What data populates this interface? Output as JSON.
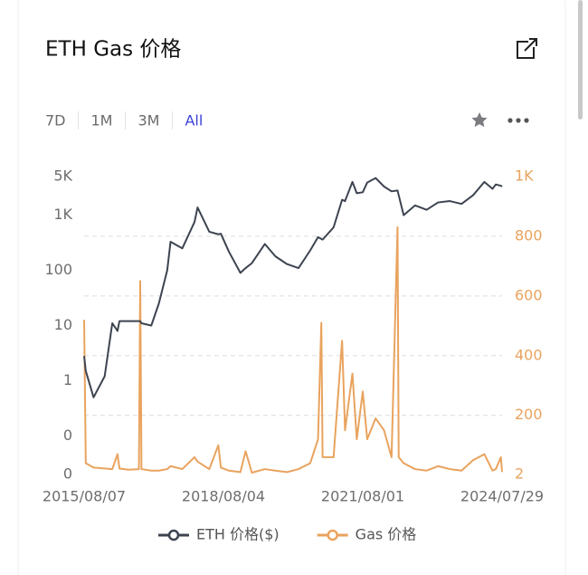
{
  "chart_data": {
    "type": "line",
    "title": "ETH Gas 价格",
    "tabs": [
      "7D",
      "1M",
      "3M",
      "All"
    ],
    "active_tab": "All",
    "log_scale": true,
    "grid": "y2",
    "x": [
      "2015/08/07",
      "2015/08/20",
      "2015/10/20",
      "2016/01/15",
      "2016/03/15",
      "2016/04/25",
      "2016/05/10",
      "2016/07/20",
      "2016/10/10",
      "2016/10/20",
      "2016/10/30",
      "2017/01/15",
      "2017/03/15",
      "2017/05/20",
      "2017/06/15",
      "2017/09/15",
      "2017/12/20",
      "2018/01/13",
      "2018/04/15",
      "2018/06/25",
      "2018/07/15",
      "2018/09/15",
      "2018/12/15",
      "2019/01/25",
      "2019/03/15",
      "2019/06/25",
      "2019/09/15",
      "2019/12/15",
      "2020/03/15",
      "2020/06/15",
      "2020/08/15",
      "2020/09/10",
      "2020/09/20",
      "2020/12/15",
      "2021/02/20",
      "2021/03/15",
      "2021/05/12",
      "2021/06/15",
      "2021/08/01",
      "2021/09/05",
      "2021/11/10",
      "2022/01/15",
      "2022/03/15",
      "2022/05/01",
      "2022/05/10",
      "2022/06/18",
      "2022/09/15",
      "2022/12/15",
      "2023/03/15",
      "2023/06/15",
      "2023/09/15",
      "2023/12/15",
      "2024/03/12",
      "2024/05/15",
      "2024/06/10",
      "2024/07/20",
      "2024/07/29"
    ],
    "series": [
      {
        "name": "ETH 价格($)",
        "color": "#3d4450",
        "axis": "y",
        "values": [
          2.8,
          1.5,
          0.5,
          1.2,
          11,
          8,
          12,
          12,
          12,
          12,
          11,
          10,
          25,
          100,
          330,
          250,
          750,
          1380,
          500,
          450,
          460,
          220,
          90,
          110,
          135,
          300,
          180,
          130,
          110,
          230,
          400,
          370,
          360,
          600,
          1900,
          1800,
          4000,
          2500,
          2600,
          3900,
          4700,
          3300,
          2700,
          2800,
          2300,
          1000,
          1500,
          1250,
          1700,
          1800,
          1600,
          2300,
          4000,
          3000,
          3600,
          3400,
          3300
        ]
      },
      {
        "name": "Gas 价格",
        "color": "#e9a35e",
        "axis": "y2",
        "values": [
          520,
          40,
          25,
          22,
          20,
          70,
          22,
          18,
          20,
          650,
          20,
          15,
          15,
          20,
          30,
          20,
          60,
          45,
          20,
          100,
          25,
          15,
          10,
          80,
          8,
          20,
          15,
          10,
          20,
          40,
          120,
          510,
          60,
          60,
          450,
          150,
          340,
          120,
          280,
          120,
          190,
          150,
          60,
          830,
          60,
          40,
          20,
          15,
          30,
          20,
          15,
          50,
          70,
          15,
          20,
          60,
          10
        ]
      }
    ],
    "xlim": [
      "2015/08/07",
      "2024/07/29"
    ],
    "xticks": [
      "2015/08/07",
      "2018/08/04",
      "2021/08/01",
      "2024/07/29"
    ],
    "ylim": [
      0.02,
      5000
    ],
    "yticks": [
      {
        "value": 0.02,
        "label": "0"
      },
      {
        "value": 0.1,
        "label": "0"
      },
      1,
      10,
      100,
      {
        "value": 1000,
        "label": "1K"
      },
      {
        "value": 5000,
        "label": "5K"
      }
    ],
    "y2lim": [
      2,
      1000
    ],
    "y2ticks": [
      2,
      200,
      400,
      600,
      800,
      {
        "value": 1000,
        "label": "1K"
      }
    ]
  }
}
